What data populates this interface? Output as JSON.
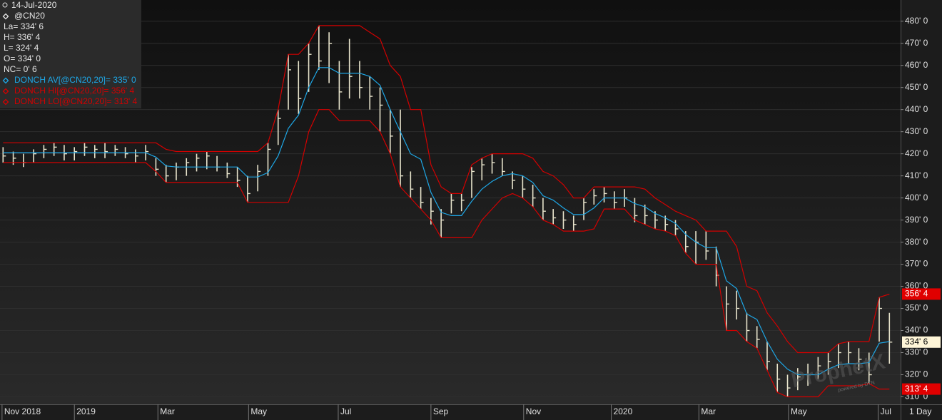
{
  "chart_data": {
    "type": "ohlc",
    "date": "14-Jul-2020",
    "quote": [
      "La= 334' 6",
      "H= 336' 4",
      "L= 324' 4",
      "O= 334' 0",
      "NC= 0' 6"
    ],
    "interval": "1 Day",
    "watermark": "ProphetX",
    "watermark_sub": "powered by DTN",
    "xlim": [
      -0.3,
      88.1
    ],
    "xticks": [
      {
        "value": -0.1,
        "label": "Nov 2018"
      },
      {
        "value": 7,
        "label": "2019"
      },
      {
        "value": 15.2,
        "label": "Mar"
      },
      {
        "value": 24.1,
        "label": "May"
      },
      {
        "value": 32.9,
        "label": "Jul"
      },
      {
        "value": 42,
        "label": "Sep"
      },
      {
        "value": 51.1,
        "label": "Nov"
      },
      {
        "value": 59.7,
        "label": "2020"
      },
      {
        "value": 68.3,
        "label": "Mar"
      },
      {
        "value": 77.1,
        "label": "May"
      },
      {
        "value": 85.9,
        "label": "Jul"
      }
    ],
    "ylim": [
      306.6,
      489.6
    ],
    "yticks": [
      {
        "value": 480,
        "label": "480' 0"
      },
      {
        "value": 470,
        "label": "470' 0"
      },
      {
        "value": 460,
        "label": "460' 0"
      },
      {
        "value": 450,
        "label": "450' 0"
      },
      {
        "value": 440,
        "label": "440' 0"
      },
      {
        "value": 430,
        "label": "430' 0"
      },
      {
        "value": 420,
        "label": "420' 0"
      },
      {
        "value": 410,
        "label": "410' 0"
      },
      {
        "value": 400,
        "label": "400' 0"
      },
      {
        "value": 390,
        "label": "390' 0"
      },
      {
        "value": 380,
        "label": "380' 0"
      },
      {
        "value": 370,
        "label": "370' 0"
      },
      {
        "value": 360,
        "label": "360' 0"
      },
      {
        "value": 350,
        "label": "350' 0"
      },
      {
        "value": 340,
        "label": "340' 0"
      },
      {
        "value": 330,
        "label": "330' 0"
      },
      {
        "value": 320,
        "label": "320' 0"
      },
      {
        "value": 310,
        "label": "310' 0"
      }
    ],
    "price_tags": [
      {
        "value": 356.5,
        "label": "356' 4",
        "color": "#e00000"
      },
      {
        "value": 334.75,
        "label": "334' 6",
        "color": "#fff6d8"
      },
      {
        "value": 313.5,
        "label": "313' 4",
        "color": "#e00000"
      }
    ],
    "series": [
      {
        "name": "@CN20",
        "type": "ohlc",
        "color": "#e8e4cc",
        "high": [
          423,
          421,
          420,
          422,
          424,
          425,
          424,
          423,
          425,
          424,
          425,
          424,
          423,
          422,
          424,
          418,
          415,
          416,
          418,
          420,
          421,
          419,
          416,
          414,
          410,
          415,
          425,
          440,
          465,
          462,
          470,
          478,
          475,
          462,
          472,
          462,
          455,
          450,
          440,
          440,
          412,
          405,
          400,
          395,
          402,
          402,
          414,
          418,
          420,
          418,
          412,
          410,
          406,
          400,
          395,
          394,
          392,
          400,
          404,
          405,
          403,
          404,
          400,
          397,
          394,
          392,
          390,
          385,
          385,
          385,
          378,
          360,
          358,
          348,
          342,
          335,
          325,
          320,
          323,
          325,
          328,
          330,
          334,
          335,
          332,
          330,
          355,
          348
        ],
        "low": [
          416,
          415,
          414,
          416,
          418,
          419,
          417,
          417,
          419,
          418,
          418,
          419,
          418,
          416,
          417,
          410,
          407,
          408,
          410,
          412,
          413,
          412,
          409,
          405,
          398,
          403,
          410,
          424,
          440,
          438,
          448,
          458,
          452,
          440,
          445,
          445,
          440,
          430,
          420,
          405,
          400,
          395,
          388,
          382,
          393,
          394,
          400,
          408,
          411,
          410,
          404,
          400,
          396,
          390,
          388,
          386,
          385,
          390,
          397,
          398,
          395,
          396,
          389,
          388,
          386,
          385,
          383,
          375,
          370,
          372,
          360,
          340,
          345,
          335,
          332,
          322,
          312,
          310,
          313,
          315,
          318,
          320,
          323,
          325,
          322,
          316,
          335,
          325
        ],
        "close": [
          419,
          418,
          416,
          420,
          422,
          423,
          420,
          421,
          423,
          422,
          421,
          422,
          420,
          419,
          421,
          413,
          410,
          414,
          416,
          418,
          419,
          414,
          411,
          408,
          402,
          412,
          422,
          436,
          458,
          445,
          465,
          462,
          470,
          448,
          455,
          450,
          446,
          442,
          428,
          410,
          404,
          398,
          394,
          390,
          399,
          399,
          412,
          415,
          416,
          412,
          408,
          404,
          400,
          394,
          391,
          390,
          388,
          398,
          401,
          402,
          398,
          400,
          392,
          392,
          390,
          388,
          386,
          378,
          380,
          376,
          365,
          352,
          350,
          340,
          336,
          326,
          318,
          314,
          319,
          320,
          324,
          326,
          330,
          330,
          327,
          320,
          350,
          334.75
        ]
      },
      {
        "name": "DONCH AV[@CN20,20]= 335' 0",
        "type": "line",
        "color": "#1ea7e6",
        "values": [
          420.5,
          420.5,
          420.5,
          420.5,
          420.5,
          420.5,
          420.5,
          420.5,
          420.5,
          420.5,
          420.5,
          420.5,
          420.5,
          420.5,
          420.5,
          418.5,
          414.5,
          414,
          414,
          414,
          414,
          414,
          414,
          414,
          409.5,
          409.5,
          411.5,
          419,
          431.5,
          437.5,
          450,
          459,
          459,
          456.5,
          456.5,
          456.5,
          455,
          451,
          440,
          430,
          420,
          417.5,
          402.5,
          393.5,
          392,
          392,
          398.5,
          404,
          407.5,
          410,
          411,
          410,
          407,
          401,
          399,
          395.5,
          392.5,
          392.5,
          395.5,
          400,
          400,
          400,
          397.5,
          396,
          393,
          391,
          388.5,
          383.5,
          380,
          377.5,
          377.5,
          362.5,
          359,
          347.5,
          345,
          335,
          327,
          322.5,
          320,
          320,
          320,
          322.5,
          324.5,
          325,
          325,
          325.5,
          334.25,
          335
        ]
      },
      {
        "name": "DONCH HI[@CN20,20]= 356' 4",
        "type": "line",
        "color": "#d40000",
        "values": [
          425,
          425,
          425,
          425,
          425,
          425,
          425,
          425,
          425,
          425,
          425,
          425,
          425,
          425,
          425,
          425,
          422,
          421,
          421,
          421,
          421,
          421,
          421,
          421,
          421,
          421,
          425,
          440,
          465,
          465,
          470,
          478,
          478,
          478,
          478,
          478,
          475,
          472,
          460,
          455,
          440,
          440,
          415,
          405,
          402,
          402,
          415,
          418,
          420,
          420,
          420,
          420,
          418,
          412,
          410,
          406,
          400,
          400,
          405,
          405,
          405,
          405,
          405,
          404,
          400,
          397,
          394,
          392,
          390,
          385,
          385,
          385,
          378,
          360,
          358,
          348,
          342,
          335,
          330,
          330,
          330,
          330,
          334,
          335,
          335,
          335,
          355,
          356.5
        ]
      },
      {
        "name": "DONCH LO[@CN20,20]= 313' 4",
        "type": "line",
        "color": "#d40000",
        "values": [
          416,
          416,
          416,
          416,
          416,
          416,
          416,
          416,
          416,
          416,
          416,
          416,
          416,
          416,
          416,
          412,
          407,
          407,
          407,
          407,
          407,
          407,
          407,
          407,
          398,
          398,
          398,
          398,
          398,
          410,
          430,
          440,
          440,
          435,
          435,
          435,
          435,
          430,
          420,
          405,
          400,
          395,
          390,
          382,
          382,
          382,
          382,
          390,
          395,
          400,
          402,
          400,
          396,
          390,
          388,
          385,
          385,
          385,
          386,
          395,
          395,
          395,
          390,
          388,
          386,
          385,
          383,
          375,
          370,
          370,
          370,
          340,
          340,
          335,
          332,
          322,
          312,
          310,
          310,
          310,
          310,
          315,
          315,
          315,
          315,
          316,
          313.5,
          313.5
        ]
      }
    ]
  }
}
